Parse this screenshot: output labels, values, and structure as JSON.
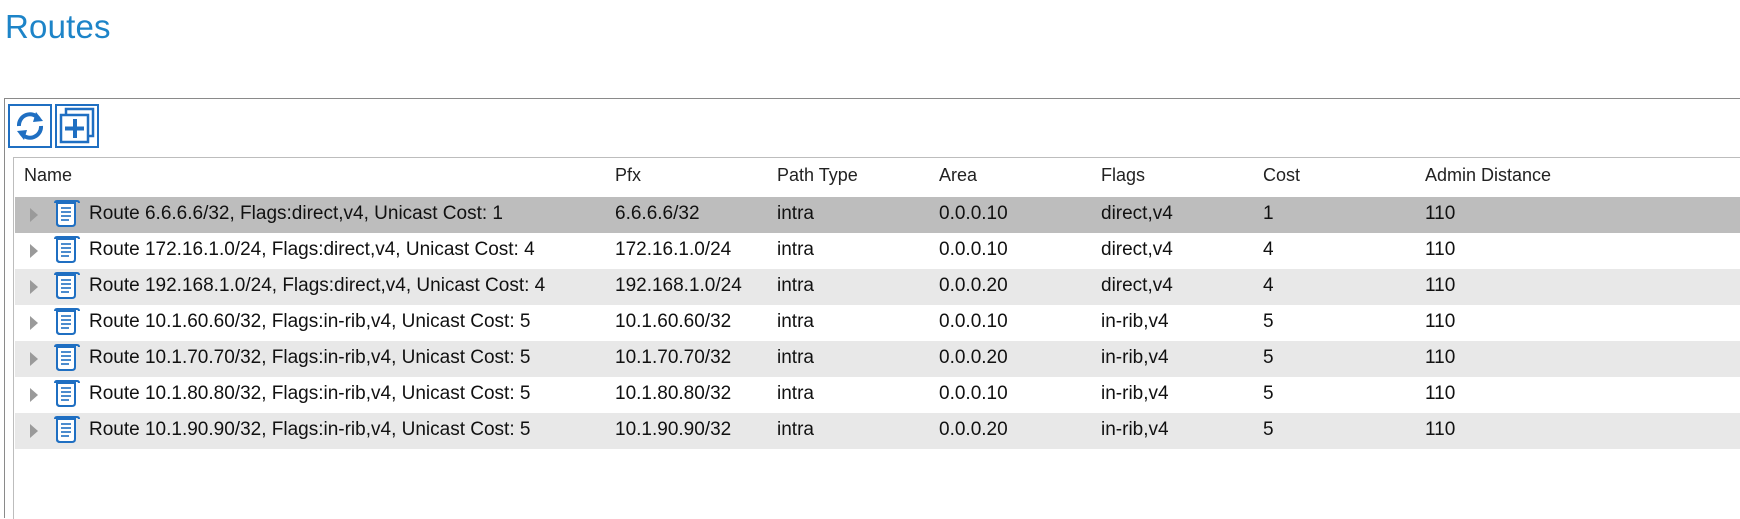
{
  "page": {
    "title": "Routes"
  },
  "toolbar": {
    "buttons": [
      {
        "icon": "refresh-icon"
      },
      {
        "icon": "add-icon"
      }
    ]
  },
  "table": {
    "columns": [
      "Name",
      "Pfx",
      "Path Type",
      "Area",
      "Flags",
      "Cost",
      "Admin Distance"
    ],
    "rows": [
      {
        "name": "Route 6.6.6.6/32, Flags:direct,v4, Unicast Cost: 1",
        "pfx": "6.6.6.6/32",
        "path_type": "intra",
        "area": "0.0.0.10",
        "flags": "direct,v4",
        "cost": "1",
        "admin_distance": "110",
        "selected": true
      },
      {
        "name": "Route 172.16.1.0/24, Flags:direct,v4, Unicast Cost: 4",
        "pfx": "172.16.1.0/24",
        "path_type": "intra",
        "area": "0.0.0.10",
        "flags": "direct,v4",
        "cost": "4",
        "admin_distance": "110",
        "selected": false
      },
      {
        "name": "Route 192.168.1.0/24, Flags:direct,v4, Unicast Cost: 4",
        "pfx": "192.168.1.0/24",
        "path_type": "intra",
        "area": "0.0.0.20",
        "flags": "direct,v4",
        "cost": "4",
        "admin_distance": "110",
        "selected": false
      },
      {
        "name": "Route 10.1.60.60/32, Flags:in-rib,v4, Unicast Cost: 5",
        "pfx": "10.1.60.60/32",
        "path_type": "intra",
        "area": "0.0.0.10",
        "flags": "in-rib,v4",
        "cost": "5",
        "admin_distance": "110",
        "selected": false
      },
      {
        "name": "Route 10.1.70.70/32, Flags:in-rib,v4, Unicast Cost: 5",
        "pfx": "10.1.70.70/32",
        "path_type": "intra",
        "area": "0.0.0.20",
        "flags": "in-rib,v4",
        "cost": "5",
        "admin_distance": "110",
        "selected": false
      },
      {
        "name": "Route 10.1.80.80/32, Flags:in-rib,v4, Unicast Cost: 5",
        "pfx": "10.1.80.80/32",
        "path_type": "intra",
        "area": "0.0.0.10",
        "flags": "in-rib,v4",
        "cost": "5",
        "admin_distance": "110",
        "selected": false
      },
      {
        "name": "Route 10.1.90.90/32, Flags:in-rib,v4, Unicast Cost: 5",
        "pfx": "10.1.90.90/32",
        "path_type": "intra",
        "area": "0.0.0.20",
        "flags": "in-rib,v4",
        "cost": "5",
        "admin_distance": "110",
        "selected": false
      }
    ]
  },
  "colors": {
    "title": "#1d84c8",
    "toolbar_icon": "#1f6fc2",
    "selected_row": "#bdbdbd",
    "striped_row": "#e8e8e8"
  }
}
